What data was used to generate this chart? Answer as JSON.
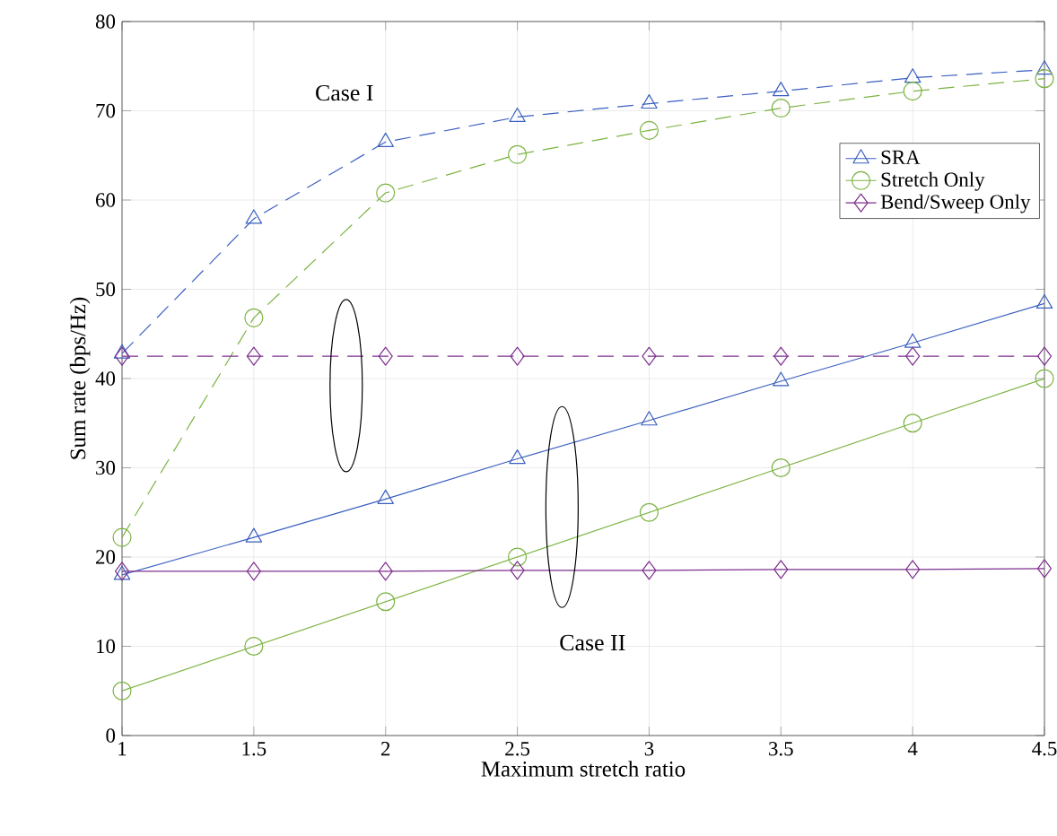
{
  "chart_data": {
    "type": "line",
    "xlabel": "Maximum stretch ratio",
    "ylabel": "Sum rate (bps/Hz)",
    "x": [
      1,
      1.5,
      2,
      2.5,
      3,
      3.5,
      4,
      4.5
    ],
    "series": [
      {
        "name": "SRA",
        "color": "#3a5fc0",
        "marker": "triangle",
        "line_style": "solid",
        "values": [
          18,
          22.2,
          26.5,
          31,
          35.3,
          39.7,
          44,
          48.4
        ]
      },
      {
        "name": "Stretch Only",
        "color": "#7cb342",
        "marker": "circle",
        "line_style": "solid",
        "values": [
          5,
          10,
          15,
          20,
          25,
          30,
          35,
          40
        ]
      },
      {
        "name": "Bend/Sweep Only",
        "color": "#7e2f8e",
        "marker": "diamond",
        "line_style": "solid",
        "values": [
          18.4,
          18.4,
          18.4,
          18.5,
          18.5,
          18.6,
          18.6,
          18.7
        ]
      },
      {
        "color": "#3a5fc0",
        "marker": "triangle",
        "line_style": "dashed",
        "values": [
          42.8,
          57.9,
          66.5,
          69.3,
          70.8,
          72.2,
          73.7,
          74.6
        ]
      },
      {
        "color": "#7cb342",
        "marker": "circle",
        "line_style": "dashed",
        "values": [
          22.2,
          46.8,
          60.8,
          65.1,
          67.8,
          70.3,
          72.2,
          73.6
        ]
      },
      {
        "color": "#7e2f8e",
        "marker": "diamond",
        "line_style": "dashed",
        "values": [
          42.5,
          42.5,
          42.5,
          42.5,
          42.5,
          42.5,
          42.5,
          42.5
        ]
      }
    ],
    "xlim": [
      1,
      4.5
    ],
    "ylim": [
      0,
      80
    ],
    "xticks": [
      1,
      1.5,
      2,
      2.5,
      3,
      3.5,
      4,
      4.5
    ],
    "yticks": [
      0,
      10,
      20,
      30,
      40,
      50,
      60,
      70,
      80
    ],
    "grid": true,
    "legend": "top right",
    "annotations": [
      "Case I",
      "Case II"
    ]
  }
}
